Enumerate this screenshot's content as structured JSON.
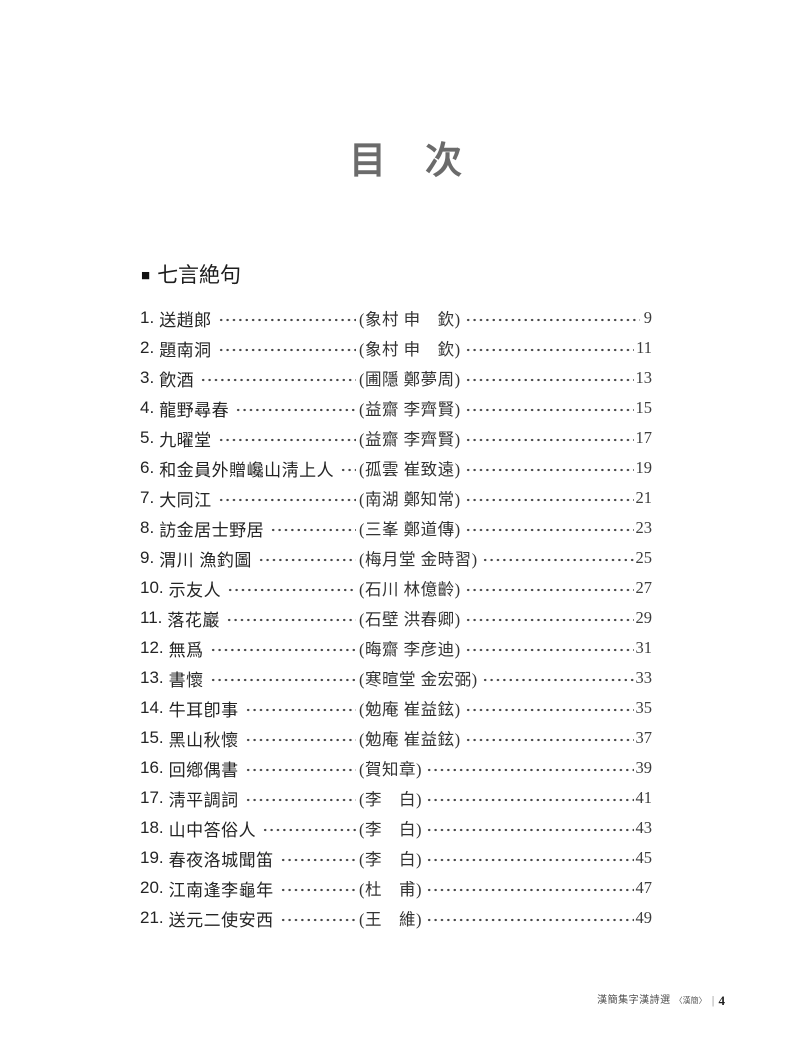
{
  "doc": {
    "title": "目　次",
    "section_header": {
      "marker": "■",
      "label": "七言絶句"
    },
    "footer": {
      "book_title": "漢簡集字漢詩選",
      "edition": "〈漢簡〉",
      "separator": "|",
      "page_number": "4"
    }
  },
  "list": {
    "items": [
      {
        "no": "1.",
        "title": "送趙郞",
        "author": "(象村 申　欽)",
        "page": "9"
      },
      {
        "no": "2.",
        "title": "題南洞",
        "author": "(象村 申　欽)",
        "page": "11"
      },
      {
        "no": "3.",
        "title": "飮酒",
        "author": "(圃隱 鄭夢周)",
        "page": "13"
      },
      {
        "no": "4.",
        "title": "龍野尋春",
        "author": "(益齋 李齊賢)",
        "page": "15"
      },
      {
        "no": "5.",
        "title": "九曜堂",
        "author": "(益齋 李齊賢)",
        "page": "17"
      },
      {
        "no": "6.",
        "title": "和金員外贈巉山淸上人",
        "author": "(孤雲 崔致遠)",
        "page": "19"
      },
      {
        "no": "7.",
        "title": "大同江",
        "author": "(南湖 鄭知常)",
        "page": "21"
      },
      {
        "no": "8.",
        "title": "訪金居士野居",
        "author": "(三峯 鄭道傳)",
        "page": "23"
      },
      {
        "no": "9.",
        "title": "渭川 漁釣圖",
        "author": "(梅月堂 金時習)",
        "page": "25"
      },
      {
        "no": "10.",
        "title": "示友人",
        "author": "(石川 林億齡)",
        "page": "27"
      },
      {
        "no": "11.",
        "title": "落花巖",
        "author": "(石壁 洪春卿)",
        "page": "29"
      },
      {
        "no": "12.",
        "title": "無爲",
        "author": "(晦齋 李彦迪)",
        "page": "31"
      },
      {
        "no": "13.",
        "title": "書懷",
        "author": "(寒暄堂 金宏弼)",
        "page": "33"
      },
      {
        "no": "14.",
        "title": "牛耳卽事",
        "author": "(勉庵 崔益鉉)",
        "page": "35"
      },
      {
        "no": "15.",
        "title": "黑山秋懷",
        "author": "(勉庵 崔益鉉)",
        "page": "37"
      },
      {
        "no": "16.",
        "title": "回鄕偶書",
        "author": "(賀知章)",
        "page": "39"
      },
      {
        "no": "17.",
        "title": "淸平調詞",
        "author": "(李　白)",
        "page": "41"
      },
      {
        "no": "18.",
        "title": "山中答俗人",
        "author": "(李　白)",
        "page": "43"
      },
      {
        "no": "19.",
        "title": "春夜洛城聞笛",
        "author": "(李　白)",
        "page": "45"
      },
      {
        "no": "20.",
        "title": "江南逢李龜年",
        "author": "(杜　甫)",
        "page": "47"
      },
      {
        "no": "21.",
        "title": "送元二使安西",
        "author": "(王　維)",
        "page": "49"
      }
    ]
  }
}
